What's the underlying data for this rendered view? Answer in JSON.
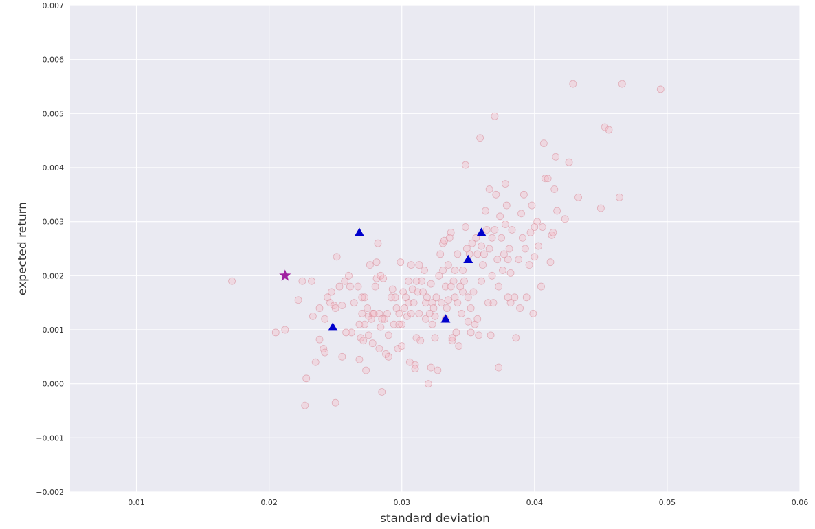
{
  "chart_data": {
    "type": "scatter",
    "xlabel": "standard deviation",
    "ylabel": "expected return",
    "xlim": [
      0.005,
      0.06
    ],
    "ylim": [
      -0.002,
      0.007
    ],
    "x_ticks": [
      0.01,
      0.02,
      0.03,
      0.04,
      0.05,
      0.06
    ],
    "x_tick_labels": [
      "0.01",
      "0.02",
      "0.03",
      "0.04",
      "0.05",
      "0.06"
    ],
    "y_ticks": [
      -0.002,
      -0.001,
      0.0,
      0.001,
      0.002,
      0.003,
      0.004,
      0.005,
      0.006,
      0.007
    ],
    "y_tick_labels": [
      "−0.002",
      "−0.001",
      "0.000",
      "0.001",
      "0.002",
      "0.003",
      "0.004",
      "0.005",
      "0.006",
      "0.007"
    ],
    "grid": true,
    "background": "#eaeaf2",
    "series": [
      {
        "marker": "circle",
        "color": "#f5b6c2",
        "points": [
          [
            0.0172,
            0.0019
          ],
          [
            0.0205,
            0.00095
          ],
          [
            0.0212,
            0.001
          ],
          [
            0.0222,
            0.00155
          ],
          [
            0.0225,
            0.0019
          ],
          [
            0.0228,
            0.0001
          ],
          [
            0.0227,
            -0.0004
          ],
          [
            0.0232,
            0.0019
          ],
          [
            0.0233,
            0.00125
          ],
          [
            0.0235,
            0.0004
          ],
          [
            0.0238,
            0.0014
          ],
          [
            0.0238,
            0.00082
          ],
          [
            0.0241,
            0.00065
          ],
          [
            0.0242,
            0.00058
          ],
          [
            0.0242,
            0.0012
          ],
          [
            0.0244,
            0.0016
          ],
          [
            0.0246,
            0.0015
          ],
          [
            0.0247,
            0.0017
          ],
          [
            0.0249,
            0.00145
          ],
          [
            0.025,
            0.0014
          ],
          [
            0.025,
            -0.00035
          ],
          [
            0.0251,
            0.00235
          ],
          [
            0.0253,
            0.0018
          ],
          [
            0.0255,
            0.00145
          ],
          [
            0.0255,
            0.0005
          ],
          [
            0.0257,
            0.0019
          ],
          [
            0.0258,
            0.00095
          ],
          [
            0.026,
            0.002
          ],
          [
            0.0261,
            0.0018
          ],
          [
            0.0262,
            0.00095
          ],
          [
            0.0264,
            0.0015
          ],
          [
            0.0267,
            0.0018
          ],
          [
            0.0268,
            0.0011
          ],
          [
            0.0268,
            0.00045
          ],
          [
            0.0269,
            0.00085
          ],
          [
            0.027,
            0.0016
          ],
          [
            0.027,
            0.0013
          ],
          [
            0.0271,
            0.0008
          ],
          [
            0.0272,
            0.0011
          ],
          [
            0.0272,
            0.0016
          ],
          [
            0.0273,
            0.00025
          ],
          [
            0.0274,
            0.0014
          ],
          [
            0.0275,
            0.00125
          ],
          [
            0.0275,
            0.0009
          ],
          [
            0.0276,
            0.0022
          ],
          [
            0.0277,
            0.0012
          ],
          [
            0.0278,
            0.0013
          ],
          [
            0.0278,
            0.00075
          ],
          [
            0.0279,
            0.0013
          ],
          [
            0.028,
            0.0018
          ],
          [
            0.0281,
            0.00225
          ],
          [
            0.0281,
            0.00195
          ],
          [
            0.0282,
            0.0026
          ],
          [
            0.0283,
            0.0013
          ],
          [
            0.0283,
            0.00065
          ],
          [
            0.0284,
            0.00105
          ],
          [
            0.0284,
            0.002
          ],
          [
            0.0285,
            -0.00015
          ],
          [
            0.0285,
            0.0012
          ],
          [
            0.0286,
            0.00195
          ],
          [
            0.0287,
            0.0012
          ],
          [
            0.0288,
            0.00055
          ],
          [
            0.0289,
            0.0013
          ],
          [
            0.029,
            0.0009
          ],
          [
            0.029,
            0.0005
          ],
          [
            0.0292,
            0.0016
          ],
          [
            0.0293,
            0.00175
          ],
          [
            0.0294,
            0.0011
          ],
          [
            0.0295,
            0.0016
          ],
          [
            0.0296,
            0.0014
          ],
          [
            0.0297,
            0.00065
          ],
          [
            0.0298,
            0.0013
          ],
          [
            0.0298,
            0.0011
          ],
          [
            0.0299,
            0.00225
          ],
          [
            0.03,
            0.0011
          ],
          [
            0.03,
            0.0007
          ],
          [
            0.0301,
            0.0017
          ],
          [
            0.0302,
            0.0014
          ],
          [
            0.0303,
            0.0016
          ],
          [
            0.0304,
            0.00125
          ],
          [
            0.0305,
            0.0019
          ],
          [
            0.0305,
            0.0015
          ],
          [
            0.0306,
            0.0004
          ],
          [
            0.0307,
            0.0022
          ],
          [
            0.0307,
            0.0013
          ],
          [
            0.0308,
            0.00175
          ],
          [
            0.0309,
            0.0015
          ],
          [
            0.031,
            0.00035
          ],
          [
            0.031,
            0.00028
          ],
          [
            0.0311,
            0.00085
          ],
          [
            0.0311,
            0.0019
          ],
          [
            0.0312,
            0.0017
          ],
          [
            0.0313,
            0.0022
          ],
          [
            0.0313,
            0.0013
          ],
          [
            0.0314,
            0.0008
          ],
          [
            0.0315,
            0.0019
          ],
          [
            0.0316,
            0.0017
          ],
          [
            0.0317,
            0.0021
          ],
          [
            0.0318,
            0.0012
          ],
          [
            0.0318,
            0.0015
          ],
          [
            0.0319,
            0.0016
          ],
          [
            0.032,
            0.0
          ],
          [
            0.0321,
            0.0013
          ],
          [
            0.0322,
            0.00185
          ],
          [
            0.0322,
            0.0003
          ],
          [
            0.0323,
            0.0015
          ],
          [
            0.0323,
            0.0011
          ],
          [
            0.0324,
            0.0014
          ],
          [
            0.0325,
            0.00125
          ],
          [
            0.0325,
            0.00085
          ],
          [
            0.0326,
            0.0016
          ],
          [
            0.0327,
            0.00025
          ],
          [
            0.0328,
            0.002
          ],
          [
            0.0329,
            0.0024
          ],
          [
            0.033,
            0.0015
          ],
          [
            0.0331,
            0.0021
          ],
          [
            0.0331,
            0.0026
          ],
          [
            0.0332,
            0.00265
          ],
          [
            0.0333,
            0.0012
          ],
          [
            0.0333,
            0.0018
          ],
          [
            0.0334,
            0.0014
          ],
          [
            0.0335,
            0.0022
          ],
          [
            0.0335,
            0.00155
          ],
          [
            0.0336,
            0.0027
          ],
          [
            0.0337,
            0.0028
          ],
          [
            0.0337,
            0.0018
          ],
          [
            0.0338,
            0.0008
          ],
          [
            0.0338,
            0.00085
          ],
          [
            0.0339,
            0.0019
          ],
          [
            0.034,
            0.0021
          ],
          [
            0.034,
            0.0016
          ],
          [
            0.0341,
            0.00095
          ],
          [
            0.0342,
            0.0024
          ],
          [
            0.0342,
            0.0015
          ],
          [
            0.0343,
            0.0007
          ],
          [
            0.0344,
            0.0018
          ],
          [
            0.0345,
            0.0013
          ],
          [
            0.0346,
            0.0021
          ],
          [
            0.0346,
            0.0017
          ],
          [
            0.0347,
            0.0019
          ],
          [
            0.0348,
            0.0029
          ],
          [
            0.0348,
            0.00405
          ],
          [
            0.0349,
            0.0025
          ],
          [
            0.035,
            0.0016
          ],
          [
            0.035,
            0.00115
          ],
          [
            0.0351,
            0.0024
          ],
          [
            0.0352,
            0.0014
          ],
          [
            0.0352,
            0.00095
          ],
          [
            0.0353,
            0.0026
          ],
          [
            0.0354,
            0.0017
          ],
          [
            0.0355,
            0.0011
          ],
          [
            0.0356,
            0.0027
          ],
          [
            0.0357,
            0.0024
          ],
          [
            0.0357,
            0.0012
          ],
          [
            0.0358,
            0.0009
          ],
          [
            0.0359,
            0.00455
          ],
          [
            0.036,
            0.00255
          ],
          [
            0.036,
            0.0019
          ],
          [
            0.0361,
            0.0022
          ],
          [
            0.0362,
            0.0024
          ],
          [
            0.0363,
            0.0032
          ],
          [
            0.0364,
            0.00285
          ],
          [
            0.0365,
            0.0015
          ],
          [
            0.0366,
            0.0036
          ],
          [
            0.0366,
            0.0025
          ],
          [
            0.0367,
            0.0009
          ],
          [
            0.0368,
            0.002
          ],
          [
            0.0368,
            0.0027
          ],
          [
            0.0369,
            0.0015
          ],
          [
            0.037,
            0.00285
          ],
          [
            0.037,
            0.00495
          ],
          [
            0.0371,
            0.0035
          ],
          [
            0.0372,
            0.0023
          ],
          [
            0.0373,
            0.0003
          ],
          [
            0.0373,
            0.0018
          ],
          [
            0.0374,
            0.0031
          ],
          [
            0.0375,
            0.0027
          ],
          [
            0.0376,
            0.0021
          ],
          [
            0.0377,
            0.0024
          ],
          [
            0.0378,
            0.00295
          ],
          [
            0.0378,
            0.0037
          ],
          [
            0.0379,
            0.0033
          ],
          [
            0.038,
            0.0023
          ],
          [
            0.038,
            0.0016
          ],
          [
            0.0381,
            0.0025
          ],
          [
            0.0382,
            0.0015
          ],
          [
            0.0382,
            0.00205
          ],
          [
            0.0383,
            0.00285
          ],
          [
            0.0385,
            0.0016
          ],
          [
            0.0386,
            0.00085
          ],
          [
            0.0388,
            0.0023
          ],
          [
            0.0389,
            0.0014
          ],
          [
            0.039,
            0.00315
          ],
          [
            0.0391,
            0.0027
          ],
          [
            0.0392,
            0.0035
          ],
          [
            0.0393,
            0.0025
          ],
          [
            0.0394,
            0.0016
          ],
          [
            0.0396,
            0.0022
          ],
          [
            0.0397,
            0.0028
          ],
          [
            0.0398,
            0.0033
          ],
          [
            0.0399,
            0.0013
          ],
          [
            0.04,
            0.00235
          ],
          [
            0.04,
            0.0029
          ],
          [
            0.0402,
            0.003
          ],
          [
            0.0403,
            0.00255
          ],
          [
            0.0405,
            0.0018
          ],
          [
            0.0406,
            0.0029
          ],
          [
            0.0407,
            0.00445
          ],
          [
            0.0408,
            0.0038
          ],
          [
            0.041,
            0.0038
          ],
          [
            0.0412,
            0.00225
          ],
          [
            0.0413,
            0.00275
          ],
          [
            0.0414,
            0.0028
          ],
          [
            0.0415,
            0.0036
          ],
          [
            0.0416,
            0.0042
          ],
          [
            0.0417,
            0.0032
          ],
          [
            0.0423,
            0.00305
          ],
          [
            0.0426,
            0.0041
          ],
          [
            0.0429,
            0.00555
          ],
          [
            0.0433,
            0.00345
          ],
          [
            0.045,
            0.00325
          ],
          [
            0.0453,
            0.00475
          ],
          [
            0.0456,
            0.0047
          ],
          [
            0.0464,
            0.00345
          ],
          [
            0.0466,
            0.00555
          ],
          [
            0.0495,
            0.00545
          ]
        ]
      },
      {
        "marker": "triangle",
        "color": "#0000cc",
        "points": [
          [
            0.0248,
            0.00105
          ],
          [
            0.0268,
            0.0028
          ],
          [
            0.0333,
            0.0012
          ],
          [
            0.035,
            0.0023
          ],
          [
            0.036,
            0.0028
          ]
        ]
      },
      {
        "marker": "star",
        "color": "#a020a0",
        "points": [
          [
            0.0212,
            0.002
          ]
        ]
      }
    ]
  }
}
